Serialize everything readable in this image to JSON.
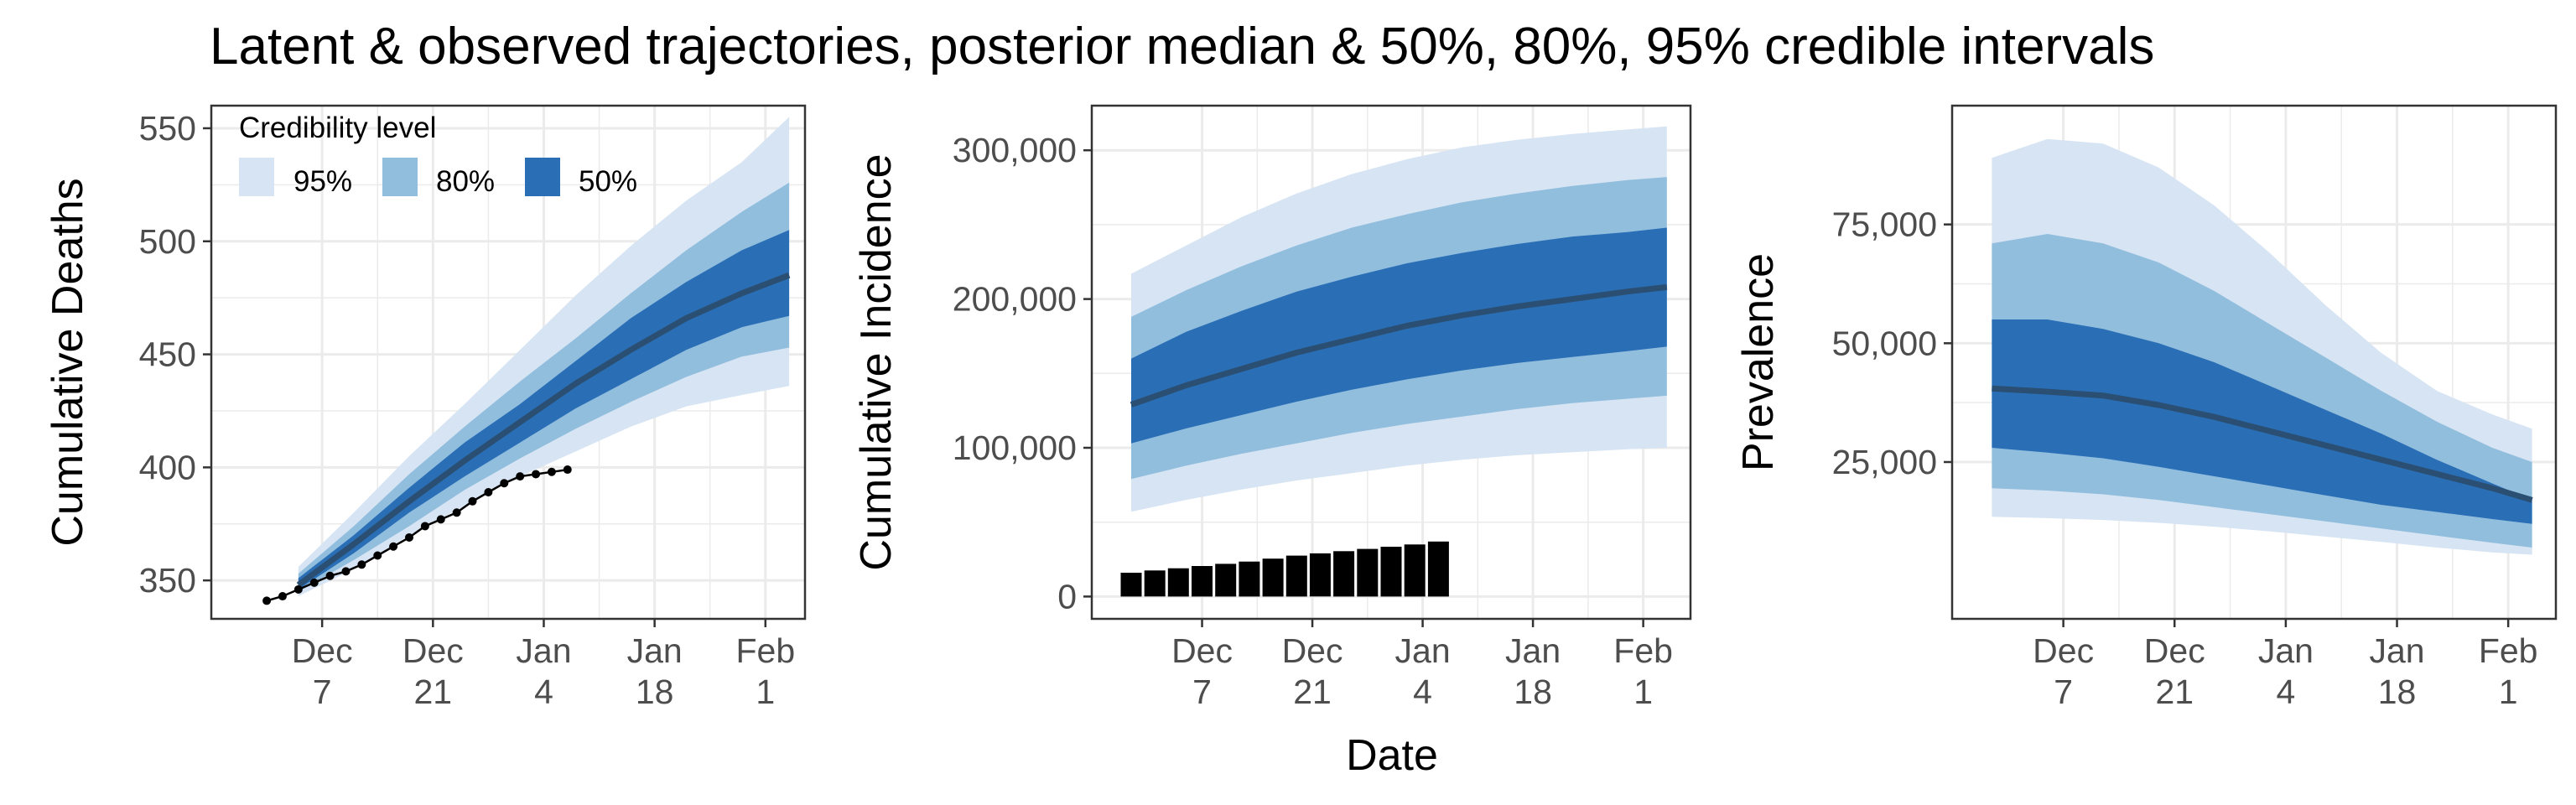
{
  "figure": {
    "title": "Latent & observed trajectories, posterior median & 50%, 80%, 95% credible intervals",
    "xlabel": "Date",
    "colors": {
      "ci95": "#d6e4f3",
      "ci80": "#92bede",
      "ci50": "#2a6fb6",
      "median": "#2a4f72",
      "observed": "#000000",
      "grid": "#ebebeb",
      "panel_border": "#333333"
    }
  },
  "legend": {
    "title": "Credibility level",
    "placement": "top-left of first panel",
    "items": [
      {
        "label": "95%",
        "color": "#d6e4f3"
      },
      {
        "label": "80%",
        "color": "#92bede"
      },
      {
        "label": "50%",
        "color": "#2a6fb6"
      }
    ]
  },
  "chart_data": [
    {
      "type": "area",
      "ylabel": "Cumulative Deaths",
      "xlabel": "",
      "x_ticks": [
        {
          "line1": "Dec",
          "line2": "7"
        },
        {
          "line1": "Dec",
          "line2": "21"
        },
        {
          "line1": "Jan",
          "line2": "4"
        },
        {
          "line1": "Jan",
          "line2": "18"
        },
        {
          "line1": "Feb",
          "line2": "1"
        }
      ],
      "xlim": [
        "2020-11-23",
        "2021-02-06"
      ],
      "ylim": [
        333,
        560
      ],
      "y_ticks": [
        {
          "value": 350,
          "label": "350"
        },
        {
          "value": 400,
          "label": "400"
        },
        {
          "value": 450,
          "label": "450"
        },
        {
          "value": 500,
          "label": "500"
        },
        {
          "value": 550,
          "label": "550"
        }
      ],
      "grid": true,
      "band_x": [
        "2020-12-04",
        "2020-12-11",
        "2020-12-18",
        "2020-12-25",
        "2021-01-01",
        "2021-01-08",
        "2021-01-15",
        "2021-01-22",
        "2021-01-29",
        "2021-02-04"
      ],
      "median": [
        348,
        366,
        385,
        403,
        420,
        437,
        452,
        466,
        477,
        485
      ],
      "ci50": [
        [
          346,
          351
        ],
        [
          362,
          370
        ],
        [
          380,
          391
        ],
        [
          396,
          411
        ],
        [
          411,
          428
        ],
        [
          426,
          447
        ],
        [
          439,
          466
        ],
        [
          452,
          482
        ],
        [
          462,
          496
        ],
        [
          467,
          505
        ]
      ],
      "ci80": [
        [
          345,
          353
        ],
        [
          359,
          374
        ],
        [
          374,
          397
        ],
        [
          390,
          418
        ],
        [
          404,
          438
        ],
        [
          417,
          457
        ],
        [
          429,
          477
        ],
        [
          440,
          496
        ],
        [
          449,
          513
        ],
        [
          453,
          526
        ]
      ],
      "ci95": [
        [
          343,
          356
        ],
        [
          355,
          380
        ],
        [
          370,
          405
        ],
        [
          383,
          428
        ],
        [
          396,
          452
        ],
        [
          407,
          476
        ],
        [
          418,
          498
        ],
        [
          427,
          518
        ],
        [
          432,
          535
        ],
        [
          436,
          555
        ]
      ],
      "observed_x": [
        "2020-11-30",
        "2020-12-02",
        "2020-12-04",
        "2020-12-06",
        "2020-12-08",
        "2020-12-10",
        "2020-12-12",
        "2020-12-14",
        "2020-12-16",
        "2020-12-18",
        "2020-12-20",
        "2020-12-22",
        "2020-12-24",
        "2020-12-26",
        "2020-12-28",
        "2020-12-30",
        "2021-01-01",
        "2021-01-03",
        "2021-01-05",
        "2021-01-07"
      ],
      "observed_y": [
        341,
        343,
        346,
        349,
        352,
        354,
        357,
        361,
        365,
        369,
        374,
        377,
        380,
        385,
        389,
        393,
        396,
        397,
        398,
        399
      ]
    },
    {
      "type": "area",
      "ylabel": "Cumulative Incidence",
      "xlabel": "Date",
      "x_ticks": [
        {
          "line1": "Dec",
          "line2": "7"
        },
        {
          "line1": "Dec",
          "line2": "21"
        },
        {
          "line1": "Jan",
          "line2": "4"
        },
        {
          "line1": "Jan",
          "line2": "18"
        },
        {
          "line1": "Feb",
          "line2": "1"
        }
      ],
      "xlim": [
        "2020-11-23",
        "2021-02-07"
      ],
      "ylim": [
        -15000,
        330000
      ],
      "y_ticks": [
        {
          "value": 0,
          "label": "0"
        },
        {
          "value": 100000,
          "label": "100,000"
        },
        {
          "value": 200000,
          "label": "200,000"
        },
        {
          "value": 300000,
          "label": "300,000"
        }
      ],
      "grid": true,
      "band_x": [
        "2020-11-28",
        "2020-12-05",
        "2020-12-12",
        "2020-12-19",
        "2020-12-26",
        "2021-01-02",
        "2021-01-09",
        "2021-01-16",
        "2021-01-23",
        "2021-01-30",
        "2021-02-04"
      ],
      "median": [
        129000,
        142000,
        153000,
        164000,
        173000,
        182000,
        189000,
        195000,
        200000,
        205000,
        208000
      ],
      "ci50": [
        [
          103000,
          160000
        ],
        [
          113000,
          178000
        ],
        [
          122000,
          192000
        ],
        [
          131000,
          205000
        ],
        [
          139000,
          215000
        ],
        [
          146000,
          224000
        ],
        [
          152000,
          231000
        ],
        [
          157000,
          237000
        ],
        [
          161000,
          242000
        ],
        [
          165000,
          245000
        ],
        [
          168000,
          248000
        ]
      ],
      "ci80": [
        [
          79000,
          188000
        ],
        [
          88000,
          206000
        ],
        [
          96000,
          222000
        ],
        [
          103000,
          236000
        ],
        [
          110000,
          248000
        ],
        [
          116000,
          257000
        ],
        [
          121000,
          265000
        ],
        [
          126000,
          271000
        ],
        [
          130000,
          276000
        ],
        [
          133000,
          280000
        ],
        [
          135000,
          282000
        ]
      ],
      "ci95": [
        [
          57000,
          217000
        ],
        [
          65000,
          236000
        ],
        [
          72000,
          255000
        ],
        [
          78000,
          271000
        ],
        [
          83000,
          284000
        ],
        [
          88000,
          294000
        ],
        [
          92000,
          302000
        ],
        [
          95000,
          307000
        ],
        [
          97000,
          311000
        ],
        [
          99000,
          314000
        ],
        [
          100000,
          316000
        ]
      ],
      "bars_x": [
        "2020-11-28",
        "2020-12-01",
        "2020-12-04",
        "2020-12-07",
        "2020-12-10",
        "2020-12-13",
        "2020-12-16",
        "2020-12-19",
        "2020-12-22",
        "2020-12-25",
        "2020-12-28",
        "2020-12-31",
        "2021-01-03",
        "2021-01-06"
      ],
      "bars_y": [
        16000,
        17500,
        19000,
        20500,
        22000,
        23500,
        25500,
        27500,
        29000,
        30500,
        32000,
        33500,
        35000,
        37000
      ]
    },
    {
      "type": "area",
      "ylabel": "Prevalence",
      "xlabel": "",
      "x_ticks": [
        {
          "line1": "Dec",
          "line2": "7"
        },
        {
          "line1": "Dec",
          "line2": "21"
        },
        {
          "line1": "Jan",
          "line2": "4"
        },
        {
          "line1": "Jan",
          "line2": "18"
        },
        {
          "line1": "Feb",
          "line2": "1"
        }
      ],
      "xlim": [
        "2020-11-23",
        "2021-02-07"
      ],
      "ylim": [
        -8000,
        100000
      ],
      "y_ticks": [
        {
          "value": 25000,
          "label": "25,000"
        },
        {
          "value": 50000,
          "label": "50,000"
        },
        {
          "value": 75000,
          "label": "75,000"
        }
      ],
      "grid": true,
      "band_x": [
        "2020-11-28",
        "2020-12-05",
        "2020-12-12",
        "2020-12-19",
        "2020-12-26",
        "2021-01-02",
        "2021-01-09",
        "2021-01-16",
        "2021-01-23",
        "2021-01-30",
        "2021-02-04"
      ],
      "median": [
        40500,
        39800,
        39000,
        37000,
        34500,
        31500,
        28500,
        25500,
        22500,
        19500,
        17000
      ],
      "ci50": [
        [
          28000,
          55000
        ],
        [
          27000,
          55000
        ],
        [
          25800,
          53000
        ],
        [
          24000,
          50000
        ],
        [
          22000,
          46000
        ],
        [
          20000,
          41000
        ],
        [
          18000,
          36000
        ],
        [
          16000,
          31000
        ],
        [
          14500,
          25500
        ],
        [
          13000,
          20500
        ],
        [
          12000,
          17000
        ]
      ],
      "ci80": [
        [
          19500,
          71000
        ],
        [
          19000,
          73000
        ],
        [
          18200,
          71000
        ],
        [
          17000,
          67000
        ],
        [
          15500,
          61000
        ],
        [
          14000,
          54000
        ],
        [
          12500,
          47000
        ],
        [
          11000,
          40000
        ],
        [
          9500,
          33500
        ],
        [
          8000,
          28000
        ],
        [
          7000,
          25000
        ]
      ],
      "ci95": [
        [
          13500,
          89000
        ],
        [
          13200,
          93000
        ],
        [
          12800,
          92000
        ],
        [
          12200,
          87000
        ],
        [
          11400,
          79000
        ],
        [
          10400,
          69000
        ],
        [
          9300,
          58000
        ],
        [
          8200,
          48000
        ],
        [
          7000,
          40000
        ],
        [
          6000,
          35000
        ],
        [
          5500,
          32000
        ]
      ]
    }
  ]
}
